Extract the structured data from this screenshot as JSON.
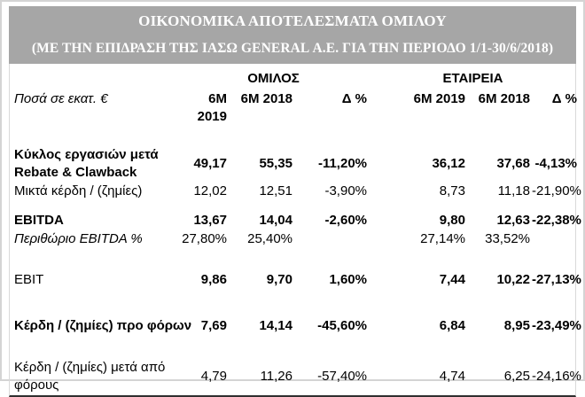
{
  "header": {
    "title": "ΟΙΚΟΝΟΜΙΚΑ ΑΠΟΤΕΛΕΣΜΑΤΑ ΟΜΙΛΟΥ",
    "subtitle": "(ΜΕ ΤΗΝ ΕΠΙΔΡΑΣΗ ΤΗΣ ΙΑΣΩ GENERAL Α.Ε. ΓΙΑ ΤΗΝ ΠΕΡΙΟΔΟ 1/1-30/6/2018)",
    "background_color": "#a6a6a6",
    "text_color": "#ffffff"
  },
  "table": {
    "unit_label": "Ποσά σε εκατ. €",
    "group_headers": [
      "ΟΜΙΛΟΣ",
      "ΕΤΑΙΡΕΙΑ"
    ],
    "column_headers": [
      "6M 2019",
      "6M 2018",
      "Δ %",
      "6M 2019",
      "6M 2018",
      "Δ %"
    ],
    "sections": [
      {
        "rows": [
          {
            "label": "Κύκλος εργασιών μετά\nRebate & Clawback",
            "style": "bold",
            "values": [
              "49,17",
              "55,35",
              "-11,20%",
              "36,12",
              "37,68",
              "-4,13%"
            ]
          },
          {
            "label": "Μικτά κέρδη / (ζημίες)",
            "style": "regular",
            "values": [
              "12,02",
              "12,51",
              "-3,90%",
              "8,73",
              "11,18",
              "-21,90%"
            ]
          }
        ]
      },
      {
        "rows": [
          {
            "label": "EBITDA",
            "style": "bold",
            "values": [
              "13,67",
              "14,04",
              "-2,60%",
              "9,80",
              "12,63",
              "-22,38%"
            ]
          },
          {
            "label": "Περιθώριο EBITDA %",
            "style": "italic",
            "values": [
              "27,80%",
              "25,40%",
              "",
              "27,14%",
              "33,52%",
              ""
            ]
          }
        ]
      },
      {
        "rows": [
          {
            "label": "EBIT",
            "style": "vals-bold",
            "values": [
              "9,86",
              "9,70",
              "1,60%",
              "7,44",
              "10,22",
              "-27,13%"
            ]
          }
        ]
      },
      {
        "rows": [
          {
            "label": "Κέρδη / (ζημίες) προ φόρων",
            "style": "bold",
            "values": [
              "7,69",
              "14,14",
              "-45,60%",
              "6,84",
              "8,95",
              "-23,49%"
            ]
          }
        ]
      },
      {
        "rows": [
          {
            "label": "Κέρδη / (ζημίες) μετά από\nφόρους",
            "style": "regular",
            "values": [
              "4,79",
              "11,26",
              "-57,40%",
              "4,74",
              "6,25",
              "-24,16%"
            ]
          }
        ]
      }
    ]
  }
}
